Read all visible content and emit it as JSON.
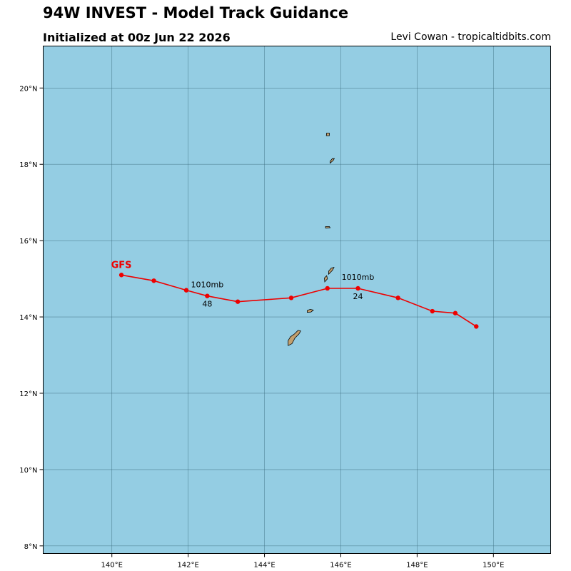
{
  "header": {
    "title": "94W INVEST - Model Track Guidance",
    "subtitle": "Initialized at 00z Jun 22 2026",
    "credit": "Levi Cowan - tropicaltidbits.com"
  },
  "colors": {
    "ocean": "#94cde3",
    "land": "#c3a06e",
    "track": "#ee0000",
    "grid": "#3d6e80"
  },
  "chart_data": {
    "type": "map",
    "lon_range": [
      138.2,
      151.5
    ],
    "lat_range": [
      7.8,
      21.1
    ],
    "lon_ticks": [
      {
        "value": 140,
        "label": "140°E"
      },
      {
        "value": 142,
        "label": "142°E"
      },
      {
        "value": 144,
        "label": "144°E"
      },
      {
        "value": 146,
        "label": "146°E"
      },
      {
        "value": 148,
        "label": "148°E"
      },
      {
        "value": 150,
        "label": "150°E"
      }
    ],
    "lat_ticks": [
      {
        "value": 8,
        "label": "8°N"
      },
      {
        "value": 10,
        "label": "10°N"
      },
      {
        "value": 12,
        "label": "12°N"
      },
      {
        "value": 14,
        "label": "14°N"
      },
      {
        "value": 16,
        "label": "16°N"
      },
      {
        "value": 18,
        "label": "18°N"
      },
      {
        "value": 20,
        "label": "20°N"
      }
    ],
    "grid": true,
    "tracks": [
      {
        "name": "GFS",
        "points": [
          {
            "lon": 149.55,
            "lat": 13.75
          },
          {
            "lon": 149.0,
            "lat": 14.1
          },
          {
            "lon": 148.4,
            "lat": 14.15
          },
          {
            "lon": 147.5,
            "lat": 14.5
          },
          {
            "lon": 146.45,
            "lat": 14.75,
            "hour": "24",
            "pressure": "1010mb"
          },
          {
            "lon": 145.65,
            "lat": 14.75
          },
          {
            "lon": 144.7,
            "lat": 14.5
          },
          {
            "lon": 143.3,
            "lat": 14.4
          },
          {
            "lon": 142.5,
            "lat": 14.55,
            "hour": "48",
            "pressure": "1010mb"
          },
          {
            "lon": 141.95,
            "lat": 14.7
          },
          {
            "lon": 141.1,
            "lat": 14.95
          },
          {
            "lon": 140.25,
            "lat": 15.1
          }
        ]
      }
    ],
    "islands": [
      {
        "name": "Guam",
        "outline": [
          [
            144.62,
            13.25
          ],
          [
            144.72,
            13.3
          ],
          [
            144.8,
            13.45
          ],
          [
            144.9,
            13.55
          ],
          [
            144.95,
            13.63
          ],
          [
            144.88,
            13.65
          ],
          [
            144.78,
            13.55
          ],
          [
            144.68,
            13.48
          ],
          [
            144.62,
            13.38
          ]
        ]
      },
      {
        "name": "Rota",
        "outline": [
          [
            145.12,
            14.12
          ],
          [
            145.22,
            14.13
          ],
          [
            145.28,
            14.18
          ],
          [
            145.2,
            14.2
          ],
          [
            145.12,
            14.17
          ]
        ]
      },
      {
        "name": "Tinian",
        "outline": [
          [
            145.58,
            14.92
          ],
          [
            145.65,
            15.0
          ],
          [
            145.63,
            15.08
          ],
          [
            145.57,
            15.02
          ]
        ]
      },
      {
        "name": "Saipan",
        "outline": [
          [
            145.68,
            15.12
          ],
          [
            145.78,
            15.22
          ],
          [
            145.82,
            15.3
          ],
          [
            145.75,
            15.28
          ],
          [
            145.68,
            15.2
          ]
        ]
      },
      {
        "name": "Anatahan",
        "outline": [
          [
            145.6,
            16.33
          ],
          [
            145.72,
            16.34
          ],
          [
            145.7,
            16.37
          ],
          [
            145.6,
            16.37
          ]
        ]
      },
      {
        "name": "Pagan",
        "outline": [
          [
            145.72,
            18.03
          ],
          [
            145.8,
            18.1
          ],
          [
            145.83,
            18.15
          ],
          [
            145.78,
            18.15
          ],
          [
            145.72,
            18.08
          ]
        ]
      },
      {
        "name": "Agrihan",
        "outline": [
          [
            145.62,
            18.75
          ],
          [
            145.7,
            18.75
          ],
          [
            145.7,
            18.82
          ],
          [
            145.63,
            18.82
          ]
        ]
      }
    ]
  }
}
